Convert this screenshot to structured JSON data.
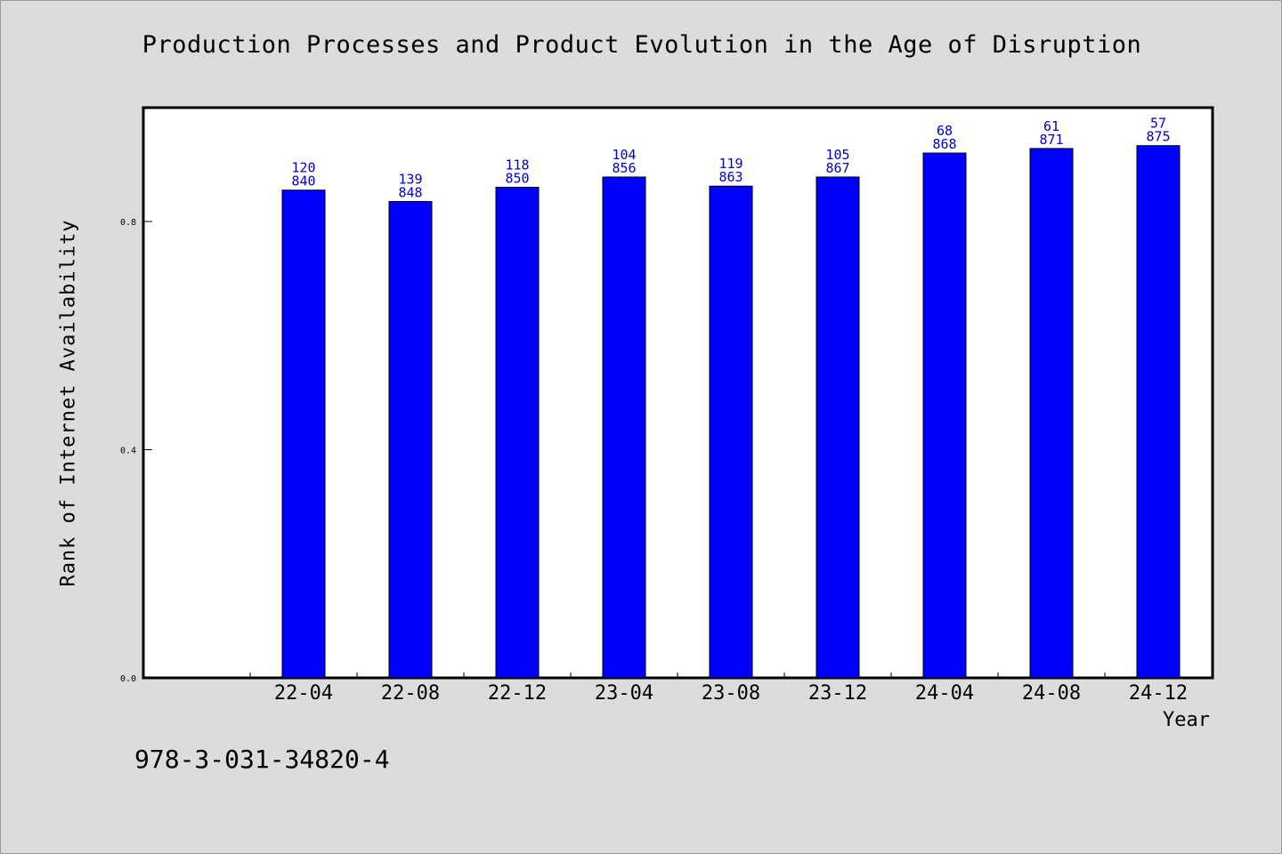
{
  "title": "Production Processes and Product Evolution in the Age of Disruption",
  "footer_text": "978-3-031-34820-4",
  "colors": {
    "bar": "#0000ff",
    "label": "#0000cc",
    "background": "#dcdcdc",
    "plot_background": "#ffffff"
  },
  "chart_data": {
    "type": "bar",
    "title": "Production Processes and Product Evolution in the Age of Disruption",
    "xlabel": "Year",
    "ylabel": "Rank of Internet Availability",
    "ylim": [
      0,
      1.0
    ],
    "yticks": [
      "0.0",
      "0.4",
      "0.8"
    ],
    "grid": false,
    "legend": "none",
    "categories": [
      "22-04",
      "22-08",
      "22-12",
      "23-04",
      "23-08",
      "23-12",
      "24-04",
      "24-08",
      "24-12"
    ],
    "values": [
      0.855,
      0.835,
      0.86,
      0.878,
      0.862,
      0.878,
      0.92,
      0.928,
      0.933
    ],
    "labels_top": [
      "120",
      "139",
      "118",
      "104",
      "119",
      "105",
      "68",
      "61",
      "57"
    ],
    "labels_bottom": [
      "840",
      "848",
      "850",
      "856",
      "863",
      "867",
      "868",
      "871",
      "875"
    ]
  }
}
